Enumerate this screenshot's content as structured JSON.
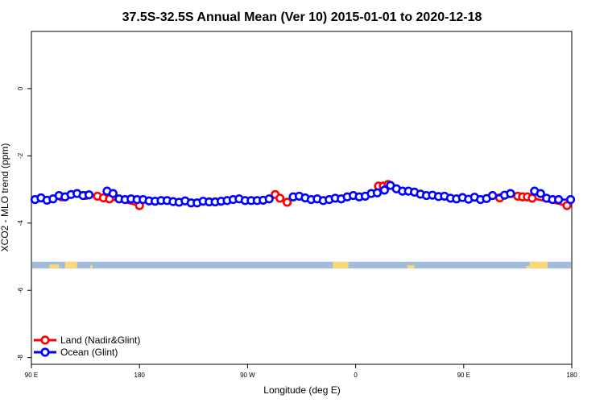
{
  "chart_data": {
    "type": "line",
    "title": "37.5S-32.5S Annual Mean (Ver 10)   2015-01-01 to 2020-12-18",
    "xlabel": "Longitude (deg E)",
    "ylabel": "XCO2 - MLO trend (ppm)",
    "xlim": [
      90,
      540
    ],
    "ylim": [
      -8.2,
      1.7
    ],
    "x_ticks": [
      {
        "value": 90,
        "label": "90 E"
      },
      {
        "value": 180,
        "label": "180"
      },
      {
        "value": 270,
        "label": "90 W"
      },
      {
        "value": 360,
        "label": "0"
      },
      {
        "value": 450,
        "label": "90 E"
      },
      {
        "value": 540,
        "label": "180"
      }
    ],
    "y_ticks": [
      {
        "value": 0,
        "label": "0"
      },
      {
        "value": -2,
        "label": "-2"
      },
      {
        "value": -4,
        "label": "-4"
      },
      {
        "value": -6,
        "label": "-6"
      },
      {
        "value": -8,
        "label": "-8"
      }
    ],
    "grid": false,
    "legend_position": "bottom-left",
    "map_strip": {
      "y_top": -5.15,
      "y_bottom": -5.35,
      "ocean_color": "#a4bcdc",
      "land_color": "#f8d878"
    },
    "series": [
      {
        "name": "Land (Nadir&Glint)",
        "color": "#ff0000",
        "points": [
          [
            115,
            -3.22
          ],
          [
            135,
            -3.18
          ],
          [
            145,
            -3.2
          ],
          [
            150,
            -3.25
          ],
          [
            155,
            -3.28
          ],
          [
            180,
            -3.48
          ],
          [
            293,
            -3.15
          ],
          [
            297,
            -3.26
          ],
          [
            303,
            -3.38
          ],
          [
            379,
            -2.9
          ],
          [
            383,
            -2.9
          ],
          [
            387,
            -2.85
          ],
          [
            480,
            -3.25
          ],
          [
            495,
            -3.2
          ],
          [
            499,
            -3.22
          ],
          [
            503,
            -3.22
          ],
          [
            507,
            -3.26
          ],
          [
            536,
            -3.48
          ]
        ]
      },
      {
        "name": "Ocean (Glint)",
        "color": "#0000ff",
        "points": [
          [
            93,
            -3.3
          ],
          [
            98,
            -3.25
          ],
          [
            103,
            -3.32
          ],
          [
            108,
            -3.28
          ],
          [
            113,
            -3.18
          ],
          [
            118,
            -3.22
          ],
          [
            123,
            -3.15
          ],
          [
            128,
            -3.12
          ],
          [
            133,
            -3.18
          ],
          [
            138,
            -3.16
          ],
          [
            153,
            -3.05
          ],
          [
            158,
            -3.12
          ],
          [
            163,
            -3.28
          ],
          [
            168,
            -3.3
          ],
          [
            173,
            -3.28
          ],
          [
            178,
            -3.3
          ],
          [
            183,
            -3.3
          ],
          [
            188,
            -3.34
          ],
          [
            193,
            -3.35
          ],
          [
            198,
            -3.33
          ],
          [
            203,
            -3.33
          ],
          [
            208,
            -3.36
          ],
          [
            213,
            -3.38
          ],
          [
            218,
            -3.34
          ],
          [
            223,
            -3.4
          ],
          [
            228,
            -3.4
          ],
          [
            233,
            -3.35
          ],
          [
            238,
            -3.37
          ],
          [
            243,
            -3.37
          ],
          [
            248,
            -3.35
          ],
          [
            253,
            -3.33
          ],
          [
            258,
            -3.3
          ],
          [
            263,
            -3.28
          ],
          [
            268,
            -3.33
          ],
          [
            273,
            -3.33
          ],
          [
            278,
            -3.33
          ],
          [
            283,
            -3.32
          ],
          [
            288,
            -3.28
          ],
          [
            308,
            -3.22
          ],
          [
            313,
            -3.2
          ],
          [
            318,
            -3.25
          ],
          [
            323,
            -3.3
          ],
          [
            328,
            -3.28
          ],
          [
            333,
            -3.33
          ],
          [
            338,
            -3.3
          ],
          [
            343,
            -3.26
          ],
          [
            348,
            -3.28
          ],
          [
            353,
            -3.22
          ],
          [
            358,
            -3.18
          ],
          [
            363,
            -3.22
          ],
          [
            368,
            -3.2
          ],
          [
            373,
            -3.12
          ],
          [
            378,
            -3.1
          ],
          [
            384,
            -3.02
          ],
          [
            389,
            -2.88
          ],
          [
            394,
            -2.98
          ],
          [
            399,
            -3.05
          ],
          [
            404,
            -3.05
          ],
          [
            409,
            -3.08
          ],
          [
            414,
            -3.14
          ],
          [
            419,
            -3.18
          ],
          [
            424,
            -3.17
          ],
          [
            429,
            -3.21
          ],
          [
            434,
            -3.2
          ],
          [
            439,
            -3.26
          ],
          [
            444,
            -3.28
          ],
          [
            449,
            -3.24
          ],
          [
            454,
            -3.29
          ],
          [
            459,
            -3.23
          ],
          [
            464,
            -3.3
          ],
          [
            469,
            -3.27
          ],
          [
            474,
            -3.18
          ],
          [
            484,
            -3.17
          ],
          [
            489,
            -3.12
          ],
          [
            509,
            -3.05
          ],
          [
            514,
            -3.12
          ],
          [
            519,
            -3.26
          ],
          [
            524,
            -3.3
          ],
          [
            529,
            -3.3
          ],
          [
            539,
            -3.3
          ]
        ]
      }
    ]
  }
}
